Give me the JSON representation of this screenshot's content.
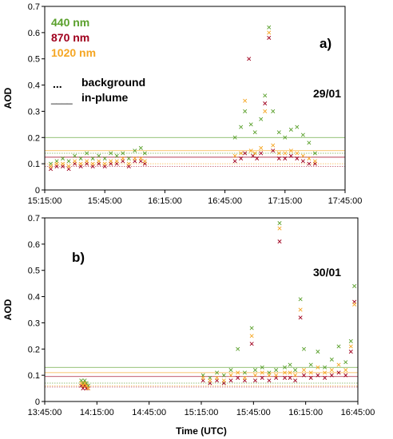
{
  "x_axis_label": "Time (UTC)",
  "legend": {
    "wavelengths": [
      "440 nm",
      "870 nm",
      "1020 nm"
    ],
    "colors": [
      "#5aa02c",
      "#a0001e",
      "#f5a623"
    ],
    "styles": [
      {
        "symbol": "...",
        "label": "background"
      },
      {
        "symbol": "____",
        "label": "in-plume"
      }
    ]
  },
  "chart_data": [
    {
      "type": "scatter",
      "panel_label": "a)",
      "date_label": "29/01",
      "ylabel": "AOD",
      "xlim": [
        "15:15:00",
        "17:45:00"
      ],
      "ylim": [
        0,
        0.7
      ],
      "x_ticks": [
        "15:15:00",
        "15:45:00",
        "16:15:00",
        "16:45:00",
        "17:15:00",
        "17:45:00"
      ],
      "y_ticks": [
        "0",
        "0.1",
        "0.2",
        "0.3",
        "0.4",
        "0.5",
        "0.6",
        "0.7"
      ],
      "series": [
        {
          "name": "440 nm",
          "points": [
            [
              "15:18:00",
              0.1
            ],
            [
              "15:21:00",
              0.11
            ],
            [
              "15:24:00",
              0.12
            ],
            [
              "15:27:00",
              0.11
            ],
            [
              "15:30:00",
              0.13
            ],
            [
              "15:33:00",
              0.12
            ],
            [
              "15:36:00",
              0.14
            ],
            [
              "15:39:00",
              0.12
            ],
            [
              "15:42:00",
              0.13
            ],
            [
              "15:45:00",
              0.12
            ],
            [
              "15:48:00",
              0.14
            ],
            [
              "15:51:00",
              0.13
            ],
            [
              "15:54:00",
              0.14
            ],
            [
              "15:57:00",
              0.12
            ],
            [
              "16:00:00",
              0.15
            ],
            [
              "16:03:00",
              0.16
            ],
            [
              "16:05:00",
              0.14
            ],
            [
              "16:50:00",
              0.2
            ],
            [
              "16:53:00",
              0.24
            ],
            [
              "16:55:00",
              0.3
            ],
            [
              "16:58:00",
              0.25
            ],
            [
              "17:00:00",
              0.22
            ],
            [
              "17:03:00",
              0.27
            ],
            [
              "17:05:00",
              0.36
            ],
            [
              "17:07:00",
              0.62
            ],
            [
              "17:09:00",
              0.3
            ],
            [
              "17:12:00",
              0.22
            ],
            [
              "17:15:00",
              0.2
            ],
            [
              "17:18:00",
              0.23
            ],
            [
              "17:21:00",
              0.24
            ],
            [
              "17:24:00",
              0.21
            ],
            [
              "17:27:00",
              0.18
            ],
            [
              "17:30:00",
              0.14
            ]
          ]
        },
        {
          "name": "870 nm",
          "points": [
            [
              "15:18:00",
              0.08
            ],
            [
              "15:21:00",
              0.09
            ],
            [
              "15:24:00",
              0.09
            ],
            [
              "15:27:00",
              0.08
            ],
            [
              "15:30:00",
              0.1
            ],
            [
              "15:33:00",
              0.09
            ],
            [
              "15:36:00",
              0.1
            ],
            [
              "15:39:00",
              0.09
            ],
            [
              "15:42:00",
              0.1
            ],
            [
              "15:45:00",
              0.09
            ],
            [
              "15:48:00",
              0.1
            ],
            [
              "15:51:00",
              0.1
            ],
            [
              "15:54:00",
              0.11
            ],
            [
              "15:57:00",
              0.09
            ],
            [
              "16:00:00",
              0.11
            ],
            [
              "16:03:00",
              0.11
            ],
            [
              "16:05:00",
              0.1
            ],
            [
              "16:50:00",
              0.11
            ],
            [
              "16:53:00",
              0.12
            ],
            [
              "16:55:00",
              0.14
            ],
            [
              "16:57:00",
              0.5
            ],
            [
              "16:59:00",
              0.13
            ],
            [
              "17:01:00",
              0.12
            ],
            [
              "17:03:00",
              0.14
            ],
            [
              "17:05:00",
              0.33
            ],
            [
              "17:07:00",
              0.58
            ],
            [
              "17:09:00",
              0.15
            ],
            [
              "17:12:00",
              0.12
            ],
            [
              "17:15:00",
              0.12
            ],
            [
              "17:18:00",
              0.13
            ],
            [
              "17:21:00",
              0.12
            ],
            [
              "17:24:00",
              0.11
            ],
            [
              "17:27:00",
              0.1
            ],
            [
              "17:30:00",
              0.1
            ]
          ]
        },
        {
          "name": "1020 nm",
          "points": [
            [
              "15:18:00",
              0.09
            ],
            [
              "15:21:00",
              0.1
            ],
            [
              "15:24:00",
              0.1
            ],
            [
              "15:27:00",
              0.09
            ],
            [
              "15:30:00",
              0.11
            ],
            [
              "15:33:00",
              0.1
            ],
            [
              "15:36:00",
              0.11
            ],
            [
              "15:39:00",
              0.1
            ],
            [
              "15:42:00",
              0.11
            ],
            [
              "15:45:00",
              0.1
            ],
            [
              "15:48:00",
              0.11
            ],
            [
              "15:51:00",
              0.11
            ],
            [
              "15:54:00",
              0.12
            ],
            [
              "15:57:00",
              0.1
            ],
            [
              "16:00:00",
              0.12
            ],
            [
              "16:03:00",
              0.12
            ],
            [
              "16:05:00",
              0.11
            ],
            [
              "16:50:00",
              0.13
            ],
            [
              "16:53:00",
              0.14
            ],
            [
              "16:55:00",
              0.34
            ],
            [
              "16:58:00",
              0.15
            ],
            [
              "17:00:00",
              0.14
            ],
            [
              "17:03:00",
              0.16
            ],
            [
              "17:05:00",
              0.3
            ],
            [
              "17:07:00",
              0.6
            ],
            [
              "17:09:00",
              0.17
            ],
            [
              "17:12:00",
              0.14
            ],
            [
              "17:15:00",
              0.14
            ],
            [
              "17:18:00",
              0.15
            ],
            [
              "17:21:00",
              0.14
            ],
            [
              "17:24:00",
              0.13
            ],
            [
              "17:27:00",
              0.12
            ],
            [
              "17:30:00",
              0.11
            ]
          ]
        }
      ],
      "reference_lines": [
        {
          "series": "440 nm",
          "style": "background",
          "y": 0.14
        },
        {
          "series": "440 nm",
          "style": "in-plume",
          "y": 0.2
        },
        {
          "series": "870 nm",
          "style": "background",
          "y": 0.09
        },
        {
          "series": "870 nm",
          "style": "in-plume",
          "y": 0.125
        },
        {
          "series": "1020 nm",
          "style": "background",
          "y": 0.1
        },
        {
          "series": "1020 nm",
          "style": "in-plume",
          "y": 0.15
        }
      ]
    },
    {
      "type": "scatter",
      "panel_label": "b)",
      "date_label": "30/01",
      "ylabel": "AOD",
      "xlim": [
        "13:45:00",
        "16:45:00"
      ],
      "ylim": [
        0,
        0.7
      ],
      "x_ticks": [
        "13:45:00",
        "14:15:00",
        "14:45:00",
        "15:15:00",
        "15:45:00",
        "16:15:00",
        "16:45:00"
      ],
      "y_ticks": [
        "0",
        "0.1",
        "0.2",
        "0.3",
        "0.4",
        "0.5",
        "0.6",
        "0.7"
      ],
      "series": [
        {
          "name": "440 nm",
          "points": [
            [
              "14:06:00",
              0.08
            ],
            [
              "14:07:00",
              0.07
            ],
            [
              "14:08:00",
              0.08
            ],
            [
              "14:09:00",
              0.07
            ],
            [
              "14:10:00",
              0.06
            ],
            [
              "15:16:00",
              0.1
            ],
            [
              "15:20:00",
              0.09
            ],
            [
              "15:24:00",
              0.11
            ],
            [
              "15:28:00",
              0.1
            ],
            [
              "15:32:00",
              0.12
            ],
            [
              "15:36:00",
              0.2
            ],
            [
              "15:40:00",
              0.11
            ],
            [
              "15:44:00",
              0.28
            ],
            [
              "15:46:00",
              0.12
            ],
            [
              "15:50:00",
              0.13
            ],
            [
              "15:54:00",
              0.11
            ],
            [
              "15:58:00",
              0.12
            ],
            [
              "16:00:00",
              0.68
            ],
            [
              "16:03:00",
              0.13
            ],
            [
              "16:06:00",
              0.14
            ],
            [
              "16:09:00",
              0.12
            ],
            [
              "16:12:00",
              0.39
            ],
            [
              "16:14:00",
              0.2
            ],
            [
              "16:18:00",
              0.14
            ],
            [
              "16:22:00",
              0.19
            ],
            [
              "16:26:00",
              0.13
            ],
            [
              "16:30:00",
              0.16
            ],
            [
              "16:34:00",
              0.21
            ],
            [
              "16:38:00",
              0.15
            ],
            [
              "16:41:00",
              0.23
            ],
            [
              "16:43:00",
              0.44
            ]
          ]
        },
        {
          "name": "870 nm",
          "points": [
            [
              "14:06:00",
              0.06
            ],
            [
              "14:07:00",
              0.05
            ],
            [
              "14:08:00",
              0.06
            ],
            [
              "14:09:00",
              0.05
            ],
            [
              "14:10:00",
              0.05
            ],
            [
              "15:16:00",
              0.08
            ],
            [
              "15:20:00",
              0.07
            ],
            [
              "15:24:00",
              0.08
            ],
            [
              "15:28:00",
              0.07
            ],
            [
              "15:32:00",
              0.08
            ],
            [
              "15:36:00",
              0.09
            ],
            [
              "15:40:00",
              0.08
            ],
            [
              "15:44:00",
              0.22
            ],
            [
              "15:46:00",
              0.08
            ],
            [
              "15:50:00",
              0.09
            ],
            [
              "15:54:00",
              0.08
            ],
            [
              "15:58:00",
              0.09
            ],
            [
              "16:00:00",
              0.61
            ],
            [
              "16:03:00",
              0.09
            ],
            [
              "16:06:00",
              0.09
            ],
            [
              "16:09:00",
              0.08
            ],
            [
              "16:12:00",
              0.32
            ],
            [
              "16:14:00",
              0.1
            ],
            [
              "16:18:00",
              0.09
            ],
            [
              "16:22:00",
              0.1
            ],
            [
              "16:26:00",
              0.09
            ],
            [
              "16:30:00",
              0.1
            ],
            [
              "16:34:00",
              0.11
            ],
            [
              "16:38:00",
              0.1
            ],
            [
              "16:41:00",
              0.19
            ],
            [
              "16:43:00",
              0.38
            ]
          ]
        },
        {
          "name": "1020 nm",
          "points": [
            [
              "14:06:00",
              0.07
            ],
            [
              "14:07:00",
              0.06
            ],
            [
              "14:08:00",
              0.07
            ],
            [
              "14:09:00",
              0.06
            ],
            [
              "14:10:00",
              0.05
            ],
            [
              "15:16:00",
              0.09
            ],
            [
              "15:20:00",
              0.08
            ],
            [
              "15:24:00",
              0.09
            ],
            [
              "15:28:00",
              0.08
            ],
            [
              "15:32:00",
              0.1
            ],
            [
              "15:36:00",
              0.11
            ],
            [
              "15:40:00",
              0.09
            ],
            [
              "15:44:00",
              0.25
            ],
            [
              "15:46:00",
              0.1
            ],
            [
              "15:50:00",
              0.11
            ],
            [
              "15:54:00",
              0.1
            ],
            [
              "15:58:00",
              0.1
            ],
            [
              "16:00:00",
              0.66
            ],
            [
              "16:03:00",
              0.11
            ],
            [
              "16:06:00",
              0.11
            ],
            [
              "16:09:00",
              0.1
            ],
            [
              "16:12:00",
              0.35
            ],
            [
              "16:14:00",
              0.12
            ],
            [
              "16:18:00",
              0.11
            ],
            [
              "16:22:00",
              0.13
            ],
            [
              "16:26:00",
              0.11
            ],
            [
              "16:30:00",
              0.12
            ],
            [
              "16:34:00",
              0.14
            ],
            [
              "16:38:00",
              0.12
            ],
            [
              "16:41:00",
              0.21
            ],
            [
              "16:43:00",
              0.37
            ]
          ]
        }
      ],
      "reference_lines": [
        {
          "series": "440 nm",
          "style": "background",
          "y": 0.07
        },
        {
          "series": "440 nm",
          "style": "in-plume",
          "y": 0.13
        },
        {
          "series": "870 nm",
          "style": "background",
          "y": 0.055
        },
        {
          "series": "870 nm",
          "style": "in-plume",
          "y": 0.095
        },
        {
          "series": "1020 nm",
          "style": "background",
          "y": 0.06
        },
        {
          "series": "1020 nm",
          "style": "in-plume",
          "y": 0.11
        }
      ]
    }
  ]
}
